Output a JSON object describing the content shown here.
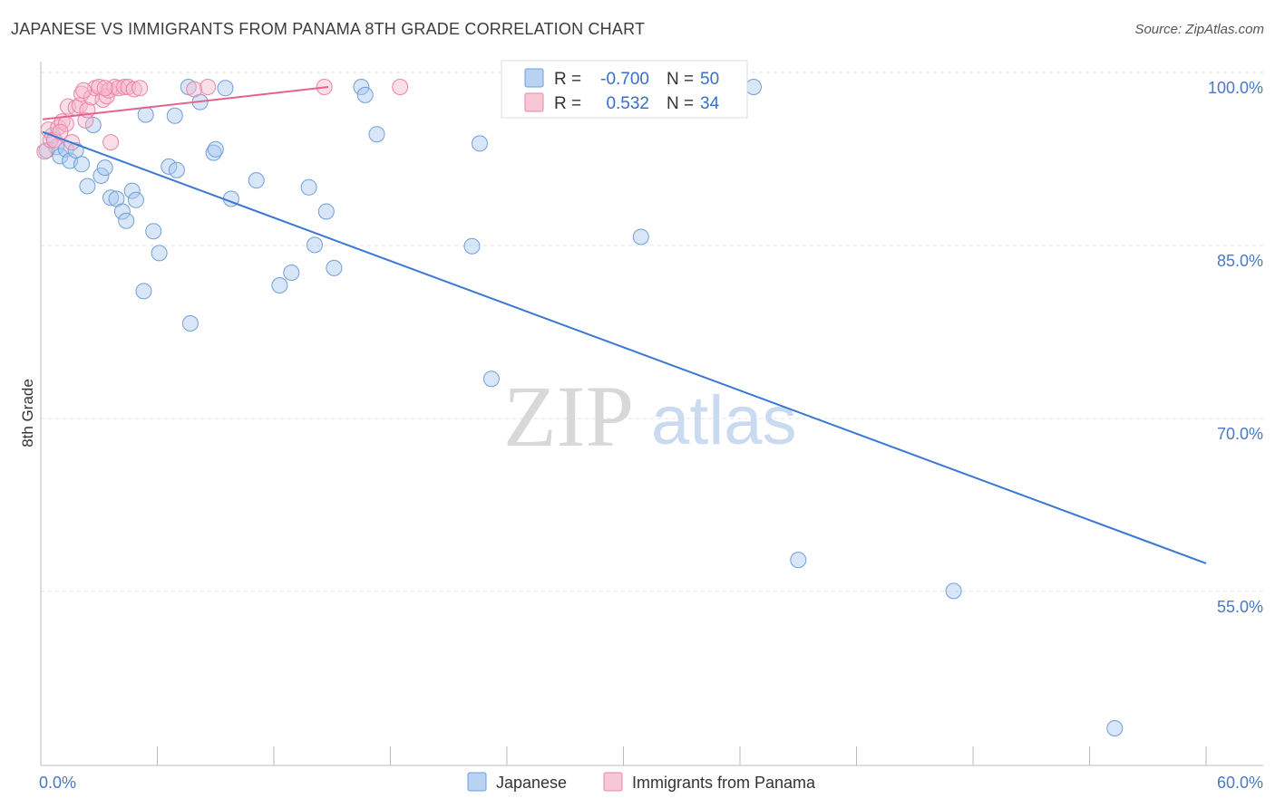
{
  "title": "JAPANESE VS IMMIGRANTS FROM PANAMA 8TH GRADE CORRELATION CHART",
  "source": "Source: ZipAtlas.com",
  "watermark": {
    "zip": "ZIP",
    "atlas": "atlas"
  },
  "legend_box": [
    {
      "r_label": "R =",
      "r_value": "-0.700",
      "n_label": "N =",
      "n_value": "50",
      "color": "#a9c7ee"
    },
    {
      "r_label": "R =",
      "r_value": "0.532",
      "n_label": "N =",
      "n_value": "34",
      "color": "#f6b9cc"
    }
  ],
  "chart_data": {
    "type": "scatter",
    "title": "JAPANESE VS IMMIGRANTS FROM PANAMA 8TH GRADE CORRELATION CHART",
    "xlabel": "",
    "ylabel": "8th Grade",
    "xlim": [
      0,
      60
    ],
    "ylim": [
      40,
      101.5
    ],
    "x_tick_labels": [
      "0.0%",
      "60.0%"
    ],
    "y_ticks": [
      100,
      85,
      70,
      55
    ],
    "y_tick_labels": [
      "100.0%",
      "85.0%",
      "70.0%",
      "55.0%"
    ],
    "grid": true,
    "legend_position": "bottom-center",
    "series": [
      {
        "name": "Japanese",
        "color": "#a9c7ee",
        "stroke": "#6f9fdc",
        "trend": {
          "x": [
            0.1,
            60
          ],
          "y": [
            96.1,
            58.7
          ],
          "color": "#3a78d4"
        },
        "points": [
          [
            0.3,
            94.5
          ],
          [
            0.6,
            95.8
          ],
          [
            0.8,
            94.8
          ],
          [
            1.0,
            94.0
          ],
          [
            1.3,
            94.6
          ],
          [
            1.5,
            93.6
          ],
          [
            1.8,
            94.5
          ],
          [
            2.1,
            93.3
          ],
          [
            2.4,
            91.4
          ],
          [
            2.7,
            96.7
          ],
          [
            3.1,
            92.3
          ],
          [
            3.3,
            93.0
          ],
          [
            3.6,
            90.4
          ],
          [
            3.9,
            90.3
          ],
          [
            4.2,
            89.2
          ],
          [
            4.4,
            88.4
          ],
          [
            4.7,
            91.0
          ],
          [
            4.9,
            90.2
          ],
          [
            5.3,
            82.3
          ],
          [
            5.4,
            97.6
          ],
          [
            5.8,
            87.5
          ],
          [
            6.1,
            85.6
          ],
          [
            6.6,
            93.1
          ],
          [
            7.0,
            92.8
          ],
          [
            6.9,
            97.5
          ],
          [
            7.6,
            100.0
          ],
          [
            7.7,
            79.5
          ],
          [
            8.2,
            98.7
          ],
          [
            8.9,
            94.3
          ],
          [
            9.0,
            94.6
          ],
          [
            9.5,
            99.9
          ],
          [
            9.8,
            90.3
          ],
          [
            11.1,
            91.9
          ],
          [
            12.3,
            82.8
          ],
          [
            12.9,
            83.9
          ],
          [
            13.8,
            91.3
          ],
          [
            14.1,
            86.3
          ],
          [
            14.7,
            89.2
          ],
          [
            15.1,
            84.3
          ],
          [
            16.5,
            100.0
          ],
          [
            16.7,
            99.3
          ],
          [
            17.3,
            95.9
          ],
          [
            22.2,
            86.2
          ],
          [
            22.6,
            95.1
          ],
          [
            23.2,
            74.7
          ],
          [
            30.9,
            87.0
          ],
          [
            36.7,
            100.0
          ],
          [
            39.0,
            59.0
          ],
          [
            47.0,
            56.3
          ],
          [
            55.3,
            44.4
          ]
        ]
      },
      {
        "name": "Immigrants from Panama",
        "color": "#f6b9cc",
        "stroke": "#e985a5",
        "trend": {
          "x": [
            0.1,
            14.8
          ],
          "y": [
            97.2,
            100.0
          ],
          "color": "#e4638e"
        },
        "points": [
          [
            0.2,
            94.4
          ],
          [
            0.4,
            96.3
          ],
          [
            0.5,
            95.4
          ],
          [
            0.7,
            95.4
          ],
          [
            0.9,
            96.5
          ],
          [
            1.1,
            97.0
          ],
          [
            1.3,
            96.8
          ],
          [
            1.4,
            98.3
          ],
          [
            1.6,
            95.2
          ],
          [
            1.8,
            98.2
          ],
          [
            2.0,
            98.4
          ],
          [
            2.1,
            99.4
          ],
          [
            2.3,
            97.1
          ],
          [
            2.4,
            98.0
          ],
          [
            2.6,
            99.1
          ],
          [
            2.8,
            99.9
          ],
          [
            3.0,
            100.0
          ],
          [
            3.2,
            98.9
          ],
          [
            3.4,
            99.2
          ],
          [
            3.5,
            99.7
          ],
          [
            3.6,
            95.2
          ],
          [
            3.8,
            100.0
          ],
          [
            4.0,
            99.9
          ],
          [
            4.3,
            100.0
          ],
          [
            4.5,
            100.0
          ],
          [
            4.8,
            99.8
          ],
          [
            5.1,
            99.9
          ],
          [
            7.9,
            99.8
          ],
          [
            8.6,
            100.0
          ],
          [
            14.6,
            100.0
          ],
          [
            18.5,
            100.0
          ],
          [
            3.3,
            99.9
          ],
          [
            2.2,
            99.7
          ],
          [
            1.0,
            96.1
          ]
        ]
      }
    ]
  }
}
